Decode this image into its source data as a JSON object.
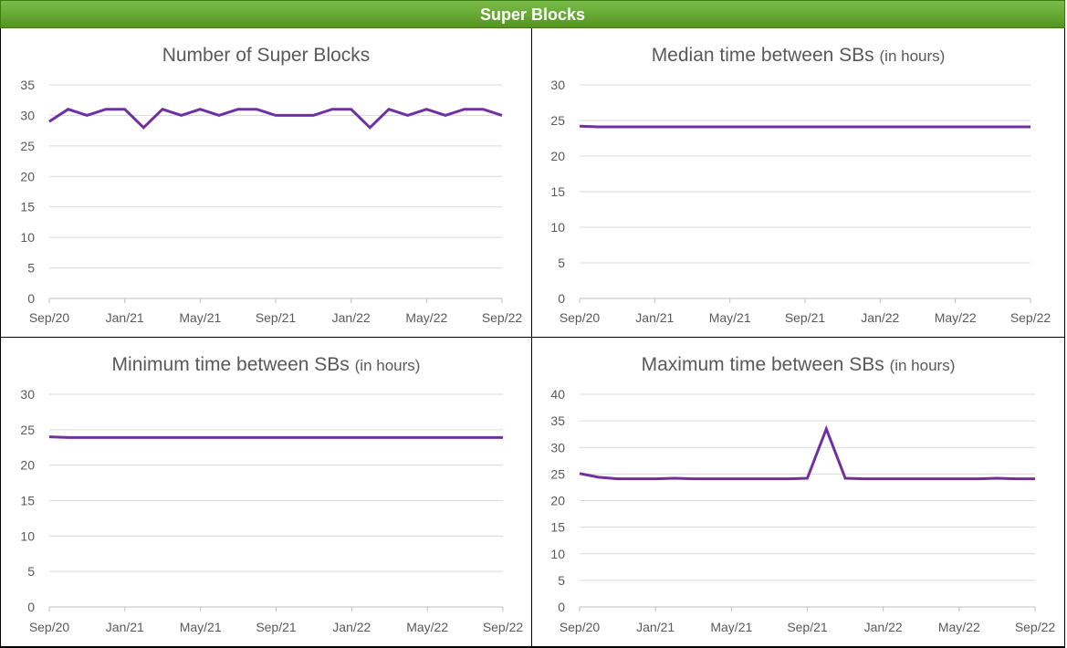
{
  "banner": {
    "title": "Super Blocks"
  },
  "colors": {
    "line": "#7030a0",
    "grid": "#d9d9d9",
    "banner": "#5fa22e",
    "text": "#595959"
  },
  "chart_data": [
    {
      "type": "line",
      "title": "Number of Super Blocks",
      "title_sub": "",
      "x": [
        "Sep/20",
        "Oct/20",
        "Nov/20",
        "Dec/20",
        "Jan/21",
        "Feb/21",
        "Mar/21",
        "Apr/21",
        "May/21",
        "Jun/21",
        "Jul/21",
        "Aug/21",
        "Sep/21",
        "Oct/21",
        "Nov/21",
        "Dec/21",
        "Jan/22",
        "Feb/22",
        "Mar/22",
        "Apr/22",
        "May/22",
        "Jun/22",
        "Jul/22",
        "Aug/22",
        "Sep/22"
      ],
      "x_tick_labels": [
        "Sep/20",
        "Jan/21",
        "May/21",
        "Sep/21",
        "Jan/22",
        "May/22",
        "Sep/22"
      ],
      "ylim": [
        0,
        35
      ],
      "y_ticks": [
        0,
        5,
        10,
        15,
        20,
        25,
        30,
        35
      ],
      "grid": true,
      "series": [
        {
          "values": [
            29,
            31,
            30,
            31,
            31,
            28,
            31,
            30,
            31,
            30,
            31,
            31,
            30,
            30,
            30,
            31,
            31,
            28,
            31,
            30,
            31,
            30,
            31,
            31,
            30
          ]
        }
      ]
    },
    {
      "type": "line",
      "title": "Median time between SBs",
      "title_sub": "(in hours)",
      "x": [
        "Sep/20",
        "Oct/20",
        "Nov/20",
        "Dec/20",
        "Jan/21",
        "Feb/21",
        "Mar/21",
        "Apr/21",
        "May/21",
        "Jun/21",
        "Jul/21",
        "Aug/21",
        "Sep/21",
        "Oct/21",
        "Nov/21",
        "Dec/21",
        "Jan/22",
        "Feb/22",
        "Mar/22",
        "Apr/22",
        "May/22",
        "Jun/22",
        "Jul/22",
        "Aug/22",
        "Sep/22"
      ],
      "x_tick_labels": [
        "Sep/20",
        "Jan/21",
        "May/21",
        "Sep/21",
        "Jan/22",
        "May/22",
        "Sep/22"
      ],
      "ylim": [
        0,
        30
      ],
      "y_ticks": [
        0,
        5,
        10,
        15,
        20,
        25,
        30
      ],
      "grid": true,
      "series": [
        {
          "values": [
            24.2,
            24.1,
            24.1,
            24.1,
            24.1,
            24.1,
            24.1,
            24.1,
            24.1,
            24.1,
            24.1,
            24.1,
            24.1,
            24.1,
            24.1,
            24.1,
            24.1,
            24.1,
            24.1,
            24.1,
            24.1,
            24.1,
            24.1,
            24.1,
            24.1
          ]
        }
      ]
    },
    {
      "type": "line",
      "title": "Minimum time between SBs",
      "title_sub": "(in hours)",
      "x": [
        "Sep/20",
        "Oct/20",
        "Nov/20",
        "Dec/20",
        "Jan/21",
        "Feb/21",
        "Mar/21",
        "Apr/21",
        "May/21",
        "Jun/21",
        "Jul/21",
        "Aug/21",
        "Sep/21",
        "Oct/21",
        "Nov/21",
        "Dec/21",
        "Jan/22",
        "Feb/22",
        "Mar/22",
        "Apr/22",
        "May/22",
        "Jun/22",
        "Jul/22",
        "Aug/22",
        "Sep/22"
      ],
      "x_tick_labels": [
        "Sep/20",
        "Jan/21",
        "May/21",
        "Sep/21",
        "Jan/22",
        "May/22",
        "Sep/22"
      ],
      "ylim": [
        0,
        30
      ],
      "y_ticks": [
        0,
        5,
        10,
        15,
        20,
        25,
        30
      ],
      "grid": true,
      "series": [
        {
          "values": [
            24.0,
            23.9,
            23.9,
            23.9,
            23.9,
            23.9,
            23.9,
            23.9,
            23.9,
            23.9,
            23.9,
            23.9,
            23.9,
            23.9,
            23.9,
            23.9,
            23.9,
            23.9,
            23.9,
            23.9,
            23.9,
            23.9,
            23.9,
            23.9,
            23.9
          ]
        }
      ]
    },
    {
      "type": "line",
      "title": "Maximum time  between SBs",
      "title_sub": "(in hours)",
      "x": [
        "Sep/20",
        "Oct/20",
        "Nov/20",
        "Dec/20",
        "Jan/21",
        "Feb/21",
        "Mar/21",
        "Apr/21",
        "May/21",
        "Jun/21",
        "Jul/21",
        "Aug/21",
        "Sep/21",
        "Oct/21",
        "Nov/21",
        "Dec/21",
        "Jan/22",
        "Feb/22",
        "Mar/22",
        "Apr/22",
        "May/22",
        "Jun/22",
        "Jul/22",
        "Aug/22",
        "Sep/22"
      ],
      "x_tick_labels": [
        "Sep/20",
        "Jan/21",
        "May/21",
        "Sep/21",
        "Jan/22",
        "May/22",
        "Sep/22"
      ],
      "ylim": [
        0,
        40
      ],
      "y_ticks": [
        0,
        5,
        10,
        15,
        20,
        25,
        30,
        35,
        40
      ],
      "grid": true,
      "series": [
        {
          "values": [
            25.1,
            24.4,
            24.1,
            24.1,
            24.1,
            24.2,
            24.1,
            24.1,
            24.1,
            24.1,
            24.1,
            24.1,
            24.2,
            33.5,
            24.2,
            24.1,
            24.1,
            24.1,
            24.1,
            24.1,
            24.1,
            24.1,
            24.2,
            24.1,
            24.1
          ]
        }
      ]
    }
  ]
}
